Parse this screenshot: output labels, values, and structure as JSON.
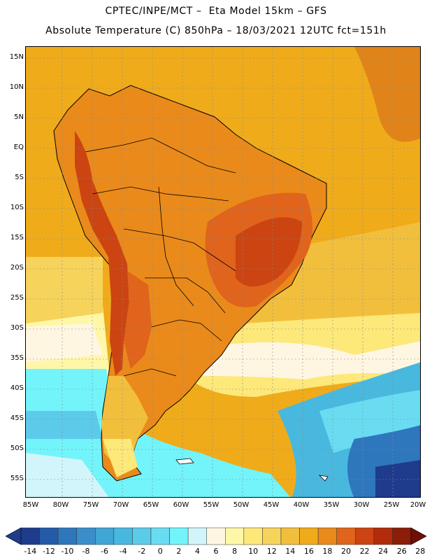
{
  "title_line1": "CPTEC/INPE/MCT –  Eta Model 15km – GFS",
  "title_line2": "Absolute Temperature (C) 850hPa – 18/03/2021 12UTC fct=151h",
  "lat_labels": [
    "15N",
    "10N",
    "5N",
    "EQ",
    "5S",
    "10S",
    "15S",
    "20S",
    "25S",
    "30S",
    "35S",
    "40S",
    "45S",
    "50S",
    "55S"
  ],
  "lon_labels": [
    "85W",
    "80W",
    "75W",
    "70W",
    "65W",
    "60W",
    "55W",
    "50W",
    "45W",
    "40W",
    "35W",
    "30W",
    "25W",
    "20W"
  ],
  "colorbar": {
    "labels": [
      "-14",
      "-12",
      "-10",
      "-8",
      "-6",
      "-4",
      "-2",
      "0",
      "2",
      "4",
      "6",
      "8",
      "10",
      "12",
      "14",
      "16",
      "18",
      "20",
      "22",
      "24",
      "26",
      "28"
    ],
    "colors": [
      "#1f3b8c",
      "#255aa8",
      "#2e77bd",
      "#3a8fcb",
      "#3fa6d6",
      "#49b8df",
      "#5ccbea",
      "#69dcf2",
      "#72f4fa",
      "#d2f5fb",
      "#fff6e2",
      "#fff7a8",
      "#fde87a",
      "#f6d35b",
      "#f2bf3d",
      "#f0ab1a",
      "#ea8a1a",
      "#e0641b",
      "#cc4411",
      "#b22b0b",
      "#8c1d08"
    ]
  }
}
